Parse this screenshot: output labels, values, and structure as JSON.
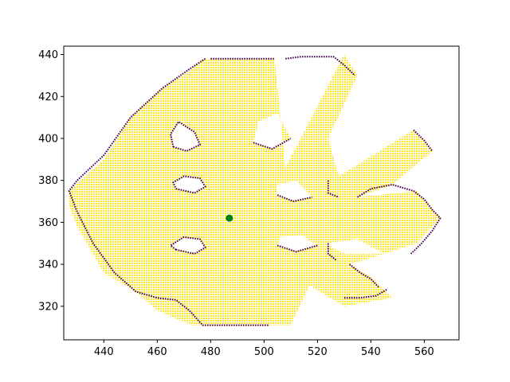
{
  "chart_data": {
    "type": "scatter",
    "title": "",
    "xlabel": "",
    "ylabel": "",
    "xlim": [
      425,
      573
    ],
    "ylim": [
      304,
      444
    ],
    "x_ticks": [
      440,
      460,
      480,
      500,
      520,
      540,
      560
    ],
    "y_ticks": [
      320,
      340,
      360,
      380,
      400,
      420,
      440
    ],
    "x_tick_labels": [
      "440",
      "460",
      "480",
      "500",
      "520",
      "540",
      "560"
    ],
    "y_tick_labels": [
      "320",
      "340",
      "360",
      "380",
      "400",
      "420",
      "440"
    ],
    "grid": false,
    "colors": {
      "interior": "#fde725",
      "boundary": "#440154",
      "robot": "#008000"
    },
    "series": [
      {
        "role": "interior",
        "color": "#fde725",
        "polygons": [
          [
            [
              427,
              375
            ],
            [
              440,
              390
            ],
            [
              450,
              410
            ],
            [
              462,
              424
            ],
            [
              472,
              432
            ],
            [
              477,
              438
            ],
            [
              504,
              438
            ],
            [
              508,
              386
            ],
            [
              530,
              440
            ],
            [
              535,
              430
            ],
            [
              524,
              400
            ],
            [
              528,
              382
            ],
            [
              556,
              404
            ],
            [
              563,
              394
            ],
            [
              548,
              378
            ],
            [
              535,
              372
            ],
            [
              557,
              375
            ],
            [
              566,
              362
            ],
            [
              557,
              350
            ],
            [
              545,
              345
            ],
            [
              532,
              340
            ],
            [
              540,
              334
            ],
            [
              548,
              324
            ],
            [
              530,
              320
            ],
            [
              517,
              330
            ],
            [
              510,
              311
            ],
            [
              473,
              311
            ],
            [
              460,
              318
            ],
            [
              452,
              327
            ],
            [
              440,
              336
            ],
            [
              430,
              358
            ],
            [
              427,
              368
            ]
          ]
        ],
        "holes": [
          [
            [
              466,
              396
            ],
            [
              471,
              394
            ],
            [
              476,
              397
            ],
            [
              474,
              403
            ],
            [
              468,
              408
            ],
            [
              465,
              402
            ]
          ],
          [
            [
              467,
              376
            ],
            [
              474,
              374
            ],
            [
              478,
              377
            ],
            [
              476,
              381
            ],
            [
              470,
              382
            ],
            [
              466,
              379
            ]
          ],
          [
            [
              467,
              347
            ],
            [
              474,
              345
            ],
            [
              478,
              348
            ],
            [
              476,
              352
            ],
            [
              470,
              353
            ],
            [
              465,
              349
            ]
          ],
          [
            [
              496,
              398
            ],
            [
              503,
              395
            ],
            [
              510,
              400
            ],
            [
              505,
              412
            ],
            [
              498,
              408
            ]
          ],
          [
            [
              505,
              373
            ],
            [
              511,
              370
            ],
            [
              518,
              372
            ],
            [
              512,
              380
            ],
            [
              505,
              378
            ]
          ],
          [
            [
              505,
              349
            ],
            [
              512,
              346
            ],
            [
              520,
              349
            ],
            [
              514,
              354
            ],
            [
              506,
              353
            ]
          ],
          [
            [
              523,
              350
            ],
            [
              530,
              345
            ],
            [
              545,
              345
            ],
            [
              535,
              352
            ]
          ]
        ]
      },
      {
        "role": "boundary",
        "color": "#440154",
        "paths": [
          [
            [
              478,
              438
            ],
            [
              472,
              433
            ],
            [
              462,
              424
            ],
            [
              450,
              410
            ],
            [
              440,
              392
            ],
            [
              430,
              380
            ],
            [
              427,
              375
            ],
            [
              430,
              365
            ],
            [
              436,
              350
            ],
            [
              444,
              336
            ],
            [
              452,
              327
            ],
            [
              460,
              324
            ],
            [
              467,
              323
            ],
            [
              472,
              318
            ],
            [
              477,
              311
            ],
            [
              486,
              311
            ],
            [
              495,
              311
            ],
            [
              502,
              311
            ]
          ],
          [
            [
              480,
              438
            ],
            [
              486,
              438
            ],
            [
              494,
              438
            ],
            [
              500,
              438
            ],
            [
              504,
              438
            ]
          ],
          [
            [
              508,
              438
            ],
            [
              514,
              439
            ],
            [
              520,
              439
            ],
            [
              526,
              439
            ],
            [
              530,
              435
            ],
            [
              534,
              430
            ]
          ],
          [
            [
              535,
              372
            ],
            [
              540,
              376
            ],
            [
              548,
              378
            ],
            [
              556,
              375
            ],
            [
              560,
              371
            ],
            [
              563,
              366
            ],
            [
              566,
              362
            ],
            [
              563,
              356
            ],
            [
              559,
              350
            ],
            [
              555,
              345
            ]
          ],
          [
            [
              556,
              404
            ],
            [
              560,
              399
            ],
            [
              563,
              394
            ]
          ],
          [
            [
              532,
              340
            ],
            [
              536,
              336
            ],
            [
              540,
              333
            ],
            [
              543,
              329
            ]
          ],
          [
            [
              530,
              324
            ],
            [
              536,
              324
            ],
            [
              542,
              325
            ],
            [
              546,
              328
            ]
          ],
          [
            [
              466,
              396
            ],
            [
              471,
              394
            ],
            [
              476,
              397
            ],
            [
              474,
              403
            ],
            [
              468,
              408
            ],
            [
              465,
              402
            ],
            [
              466,
              396
            ]
          ],
          [
            [
              467,
              376
            ],
            [
              474,
              374
            ],
            [
              478,
              377
            ],
            [
              476,
              381
            ],
            [
              470,
              382
            ],
            [
              466,
              379
            ],
            [
              467,
              376
            ]
          ],
          [
            [
              467,
              347
            ],
            [
              474,
              345
            ],
            [
              478,
              348
            ],
            [
              476,
              352
            ],
            [
              470,
              353
            ],
            [
              465,
              349
            ],
            [
              467,
              347
            ]
          ],
          [
            [
              496,
              398
            ],
            [
              503,
              395
            ],
            [
              510,
              400
            ]
          ],
          [
            [
              505,
              373
            ],
            [
              511,
              370
            ],
            [
              518,
              372
            ]
          ],
          [
            [
              505,
              349
            ],
            [
              512,
              346
            ],
            [
              520,
              349
            ]
          ],
          [
            [
              524,
              380
            ],
            [
              524,
              374
            ],
            [
              528,
              372
            ]
          ],
          [
            [
              524,
              350
            ],
            [
              524,
              345
            ],
            [
              527,
              342
            ]
          ]
        ]
      },
      {
        "role": "robot",
        "color": "#008000",
        "points": [
          [
            487,
            362
          ]
        ]
      }
    ]
  }
}
